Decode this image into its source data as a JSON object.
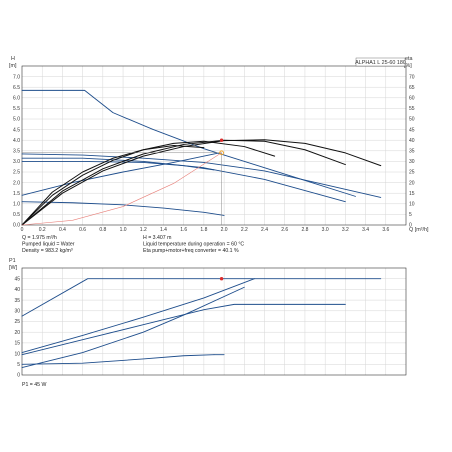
{
  "colors": {
    "pump_curve": "#1f4e8c",
    "efficiency": "#111111",
    "system_curve": "#e8807a",
    "op_point": "#d92b2b",
    "eta_point": "#f0a020"
  },
  "info": {
    "q": "Q = 1.975 m³/h",
    "h": "H = 3.407 m",
    "liquid": "Pumped liquid = Water",
    "temp": "Liquid temperature during operation = 60 °C",
    "density": "Density = 983.2 kg/m³",
    "eta": "Eta pump+motor+freq converter = 40.1 %",
    "p1": "P1 = 45 W"
  },
  "chart_data": [
    {
      "type": "line",
      "legend_box": "ALPHA1 L 25-60  180",
      "ylabel_left": [
        "H",
        "[m]"
      ],
      "ylabel_right": [
        "eta",
        "[%]"
      ],
      "xlabel": "Q [m³/h]",
      "xlim": [
        0,
        3.8
      ],
      "ylim": [
        0,
        7.5
      ],
      "y2lim": [
        0,
        75
      ],
      "xticks": [
        "0",
        "0.2",
        "0.4",
        "0.6",
        "0.8",
        "1.0",
        "1.2",
        "1.4",
        "1.6",
        "1.8",
        "2.0",
        "2.2",
        "2.4",
        "2.6",
        "2.8",
        "3.0",
        "3.2",
        "3.4",
        "3.6"
      ],
      "yticks": [
        "0.0",
        "0.5",
        "1.0",
        "1.5",
        "2.0",
        "2.5",
        "3.0",
        "3.5",
        "4.0",
        "4.5",
        "5.0",
        "5.5",
        "6.0",
        "6.5",
        "7.0"
      ],
      "y2ticks": [
        "0",
        "5",
        "10",
        "15",
        "20",
        "25",
        "30",
        "35",
        "40",
        "45",
        "50",
        "55",
        "60",
        "65",
        "70"
      ],
      "grid": true,
      "series": [
        {
          "kind": "pump",
          "x": [
            0,
            0.62,
            0.9,
            1.3,
            1.8,
            2.3,
            2.8,
            3.3
          ],
          "y": [
            6.35,
            6.35,
            5.3,
            4.5,
            3.6,
            2.85,
            2.1,
            1.35
          ]
        },
        {
          "kind": "pump",
          "x": [
            0,
            0.6,
            1.2,
            1.8,
            2.4,
            3.0,
            3.55
          ],
          "y": [
            3.35,
            3.3,
            3.15,
            2.95,
            2.55,
            1.9,
            1.3
          ]
        },
        {
          "kind": "pump",
          "x": [
            0,
            0.6,
            1.2,
            1.8,
            2.4,
            3.2
          ],
          "y": [
            3.15,
            3.15,
            3.0,
            2.7,
            2.15,
            1.1
          ]
        },
        {
          "kind": "pump",
          "x": [
            0,
            0.6,
            1.2,
            1.6,
            1.9
          ],
          "y": [
            3.0,
            3.0,
            2.95,
            2.8,
            2.6
          ]
        },
        {
          "kind": "pump",
          "x": [
            0,
            0.5,
            1.0,
            1.4,
            1.8,
            2.0
          ],
          "y": [
            1.1,
            1.05,
            0.95,
            0.8,
            0.6,
            0.45
          ]
        },
        {
          "kind": "pump",
          "x": [
            0,
            0.5,
            1.0,
            1.5,
            1.95
          ],
          "y": [
            1.4,
            2.0,
            2.5,
            2.95,
            3.4
          ]
        },
        {
          "kind": "efficiency",
          "x": [
            0,
            0.4,
            0.8,
            1.2,
            1.6,
            2.0,
            2.4,
            2.8,
            3.2,
            3.55
          ],
          "y": [
            0,
            15,
            25.5,
            32.5,
            37,
            39.8,
            40.2,
            38.5,
            34,
            28
          ]
        },
        {
          "kind": "efficiency",
          "x": [
            0,
            0.4,
            0.8,
            1.2,
            1.6,
            2.0,
            2.4,
            2.8,
            3.2
          ],
          "y": [
            0,
            16,
            26.5,
            33.5,
            38,
            40.0,
            39.5,
            35.5,
            28.5
          ]
        },
        {
          "kind": "efficiency",
          "x": [
            0,
            0.3,
            0.6,
            0.9,
            1.2,
            1.5,
            1.8,
            2.2,
            2.5
          ],
          "y": [
            0,
            14,
            23.5,
            30.5,
            35.5,
            38.5,
            39.5,
            37,
            32.5
          ]
        },
        {
          "kind": "efficiency",
          "x": [
            0,
            0.3,
            0.6,
            0.9,
            1.2,
            1.5,
            1.8
          ],
          "y": [
            0,
            15.5,
            25,
            31.5,
            35.5,
            37.5,
            36.5
          ]
        },
        {
          "kind": "system",
          "x": [
            0,
            0.5,
            1.0,
            1.5,
            1.975
          ],
          "y": [
            0,
            0.22,
            0.87,
            1.96,
            3.407
          ]
        }
      ],
      "markers": [
        {
          "kind": "op_point",
          "x": 1.975,
          "y": 4.0
        },
        {
          "kind": "eta_point",
          "x": 1.975,
          "y": 3.407
        }
      ],
      "crosshair": {
        "x": 1.975,
        "y": 3.407
      }
    },
    {
      "type": "line",
      "ylabel_left": [
        "P1",
        "[W]"
      ],
      "xlim": [
        0,
        3.8
      ],
      "ylim": [
        0,
        50
      ],
      "yticks": [
        "0",
        "5",
        "10",
        "15",
        "20",
        "25",
        "30",
        "35",
        "40",
        "45"
      ],
      "grid": true,
      "series": [
        {
          "kind": "pump",
          "x": [
            0,
            0.65,
            1.5,
            2.5,
            3.55
          ],
          "y": [
            27.5,
            45,
            45,
            45,
            45
          ]
        },
        {
          "kind": "pump",
          "x": [
            0,
            0.6,
            1.2,
            1.8,
            2.3
          ],
          "y": [
            10.5,
            18.5,
            27,
            36,
            45
          ]
        },
        {
          "kind": "pump",
          "x": [
            0,
            0.6,
            1.2,
            1.8,
            2.1,
            3.2
          ],
          "y": [
            9.5,
            16.5,
            23.5,
            30.5,
            33,
            33
          ]
        },
        {
          "kind": "pump",
          "x": [
            0,
            0.6,
            1.2,
            1.6,
            2.2
          ],
          "y": [
            3.5,
            10.5,
            20,
            28,
            41
          ]
        },
        {
          "kind": "pump",
          "x": [
            0,
            0.6,
            1.2,
            1.6,
            1.9
          ],
          "y": [
            5,
            5.5,
            7.5,
            9,
            9.5
          ]
        },
        {
          "kind": "pump",
          "x": [
            1.9,
            2.0
          ],
          "y": [
            9.5,
            9.5
          ]
        }
      ],
      "markers": [
        {
          "kind": "op_point",
          "x": 1.975,
          "y": 45
        }
      ]
    }
  ]
}
